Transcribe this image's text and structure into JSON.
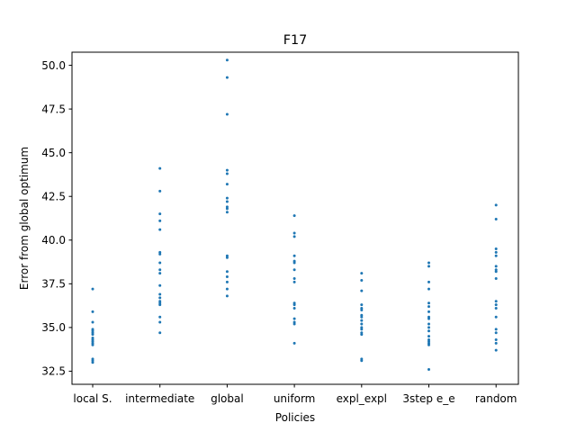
{
  "chart_data": {
    "type": "scatter",
    "title": "F17",
    "xlabel": "Policies",
    "ylabel": "Error from global optimum",
    "categories": [
      "local S.",
      "intermediate",
      "global",
      "uniform",
      "expl_expl",
      "3step e_e",
      "random"
    ],
    "ylim": [
      31.75,
      50.75
    ],
    "yticks": [
      32.5,
      35.0,
      37.5,
      40.0,
      42.5,
      45.0,
      47.5,
      50.0
    ],
    "ytick_labels": [
      "32.5",
      "35.0",
      "37.5",
      "40.0",
      "42.5",
      "45.0",
      "47.5",
      "50.0"
    ],
    "grid": false,
    "color": "#1f77b4",
    "series": [
      {
        "category": "local S.",
        "values": [
          37.2,
          35.9,
          35.3,
          34.9,
          34.8,
          34.7,
          34.6,
          34.4,
          34.3,
          34.2,
          34.1,
          34.0,
          33.2,
          33.1,
          33.0
        ]
      },
      {
        "category": "intermediate",
        "values": [
          44.1,
          42.8,
          41.5,
          41.1,
          40.6,
          39.3,
          39.2,
          38.7,
          38.3,
          38.1,
          37.4,
          36.9,
          36.7,
          36.5,
          36.4,
          36.3,
          35.6,
          35.3,
          34.7
        ]
      },
      {
        "category": "global",
        "values": [
          50.3,
          49.3,
          47.2,
          44.0,
          43.8,
          43.2,
          42.4,
          42.2,
          41.9,
          41.8,
          41.6,
          39.1,
          39.0,
          38.2,
          37.9,
          37.6,
          37.2,
          36.8
        ]
      },
      {
        "category": "uniform",
        "values": [
          41.4,
          40.4,
          40.2,
          39.1,
          38.8,
          38.7,
          38.3,
          37.8,
          37.6,
          36.4,
          36.3,
          36.1,
          35.5,
          35.3,
          35.2,
          34.1
        ]
      },
      {
        "category": "expl_expl",
        "values": [
          38.1,
          37.7,
          37.1,
          36.3,
          36.1,
          36.0,
          35.7,
          35.6,
          35.4,
          35.2,
          35.0,
          34.9,
          34.7,
          34.6,
          33.2,
          33.1
        ]
      },
      {
        "category": "3step e_e",
        "values": [
          38.7,
          38.5,
          37.6,
          37.2,
          36.4,
          36.2,
          35.9,
          35.6,
          35.5,
          35.2,
          35.0,
          34.8,
          34.5,
          34.3,
          34.2,
          34.1,
          34.0,
          32.6
        ]
      },
      {
        "category": "random",
        "values": [
          42.0,
          41.2,
          39.5,
          39.3,
          39.1,
          38.5,
          38.3,
          38.2,
          37.8,
          36.5,
          36.3,
          36.1,
          35.6,
          34.9,
          34.7,
          34.3,
          34.1,
          33.7
        ]
      }
    ]
  }
}
